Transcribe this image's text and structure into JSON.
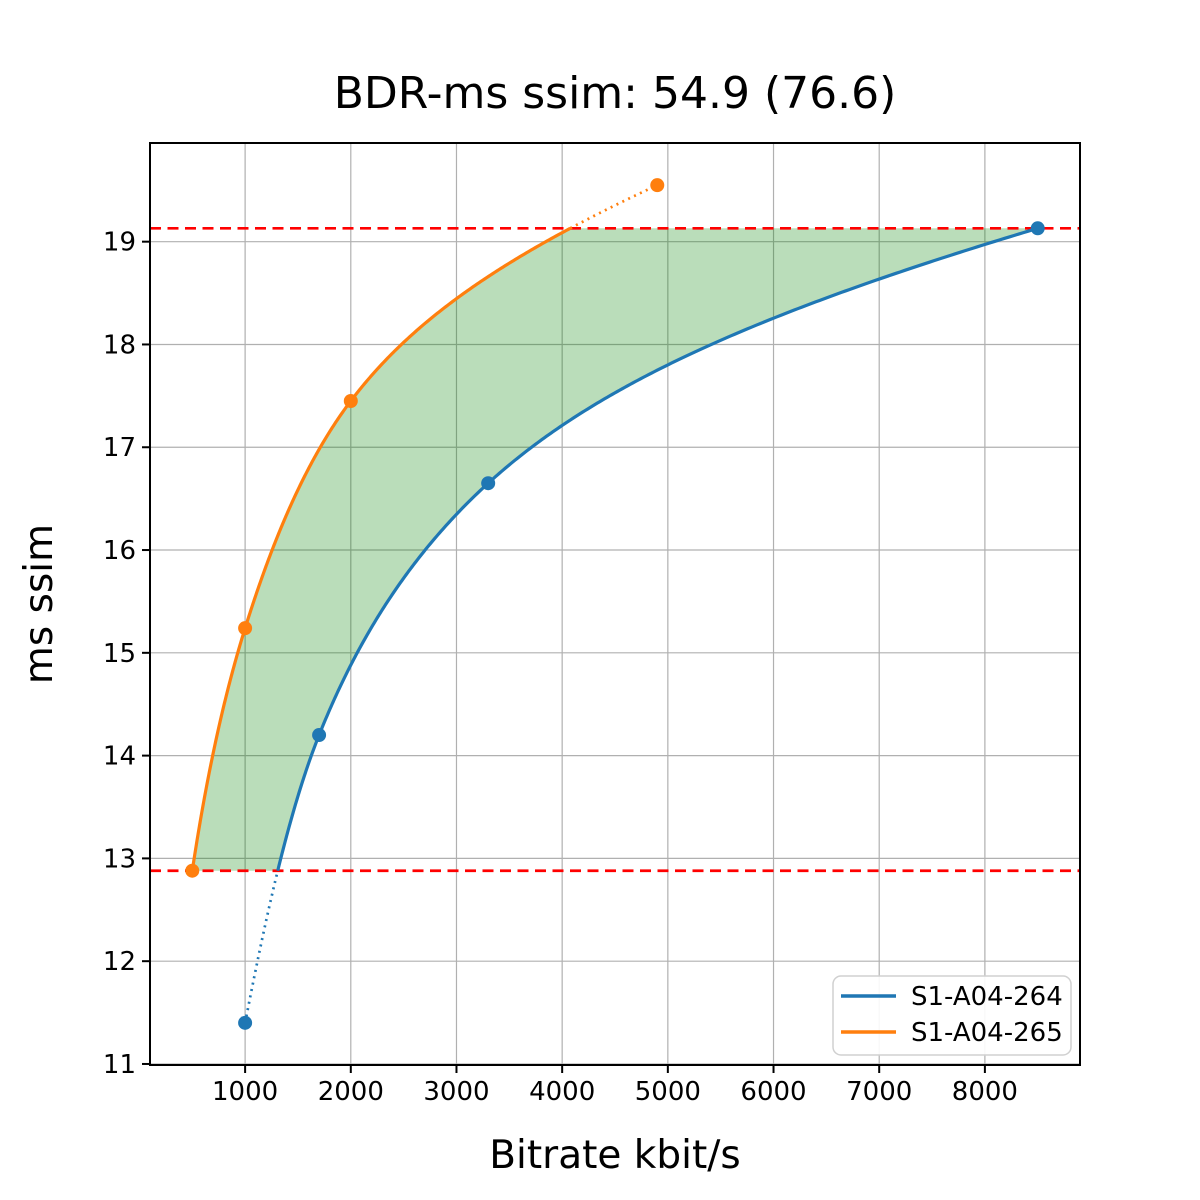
{
  "figure": {
    "title": "BDR-ms ssim: 54.9 (76.6)",
    "xlabel": "Bitrate kbit/s",
    "ylabel": "ms ssim"
  },
  "chart_data": {
    "type": "line",
    "title": "BDR-ms ssim: 54.9 (76.6)",
    "xlabel": "Bitrate kbit/s",
    "ylabel": "ms ssim",
    "xlim": [
      100,
      8900
    ],
    "ylim": [
      10.99,
      19.96
    ],
    "x_ticks": [
      1000,
      2000,
      3000,
      4000,
      5000,
      6000,
      7000,
      8000
    ],
    "y_ticks": [
      11,
      12,
      13,
      14,
      15,
      16,
      17,
      18,
      19
    ],
    "grid": true,
    "grid_color": "#b0b0b0",
    "legend_position": "lower right",
    "interpolation": "monotone-cubic-on-log-bitrate",
    "series": [
      {
        "name": "S1-A04-264",
        "color": "#1f77b4",
        "points": [
          [
            1000,
            11.4
          ],
          [
            1700,
            14.2
          ],
          [
            3300,
            16.65
          ],
          [
            8500,
            19.13
          ]
        ],
        "dotted_extrapolation": "below-overlap"
      },
      {
        "name": "S1-A04-265",
        "color": "#ff7f0e",
        "points": [
          [
            500,
            12.88
          ],
          [
            1000,
            15.24
          ],
          [
            2000,
            17.45
          ],
          [
            4900,
            19.55
          ]
        ],
        "dotted_extrapolation": "above-overlap"
      }
    ],
    "overlap_band": {
      "lower": 12.88,
      "upper": 19.13,
      "line_color": "#ff0000",
      "line_style": "dashed",
      "fill_color": "#008000",
      "fill_opacity": 0.27
    }
  }
}
